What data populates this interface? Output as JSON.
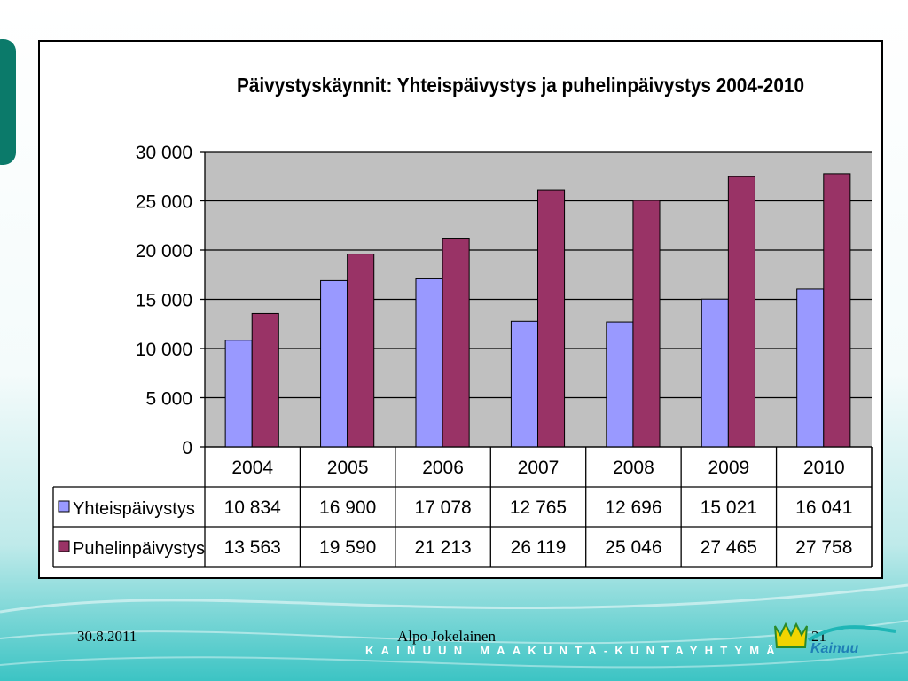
{
  "footer": {
    "date": "30.8.2011",
    "author": "Alpo Jokelainen",
    "page_number": "21",
    "organization_band": "KAINUUN MAAKUNTA-KUNTAYHTYMÄ",
    "logo_text": "Kainuu"
  },
  "colors": {
    "series_1": "#9999ff",
    "series_2": "#993366",
    "plot_background": "#c0c0c0",
    "accent_teal": "#1fb6b6",
    "dark_green_tab": "#0b7a6a"
  },
  "chart_data": {
    "type": "bar",
    "title": "Päivystyskäynnit: Yhteispäivystys ja puhelinpäivystys 2004-2010",
    "categories": [
      "2004",
      "2005",
      "2006",
      "2007",
      "2008",
      "2009",
      "2010"
    ],
    "series": [
      {
        "name": "Yhteispäivystys",
        "values": [
          10834,
          16900,
          17078,
          12765,
          12696,
          15021,
          16041
        ],
        "labels": [
          "10 834",
          "16 900",
          "17 078",
          "12 765",
          "12 696",
          "15 021",
          "16 041"
        ]
      },
      {
        "name": "Puhelinpäivystys",
        "values": [
          13563,
          19590,
          21213,
          26119,
          25046,
          27465,
          27758
        ],
        "labels": [
          "13 563",
          "19 590",
          "21 213",
          "26 119",
          "25 046",
          "27 465",
          "27 758"
        ]
      }
    ],
    "yticks": [
      0,
      5000,
      10000,
      15000,
      20000,
      25000,
      30000
    ],
    "ytick_labels": [
      "0",
      "5 000",
      "10 000",
      "15 000",
      "20 000",
      "25 000",
      "30 000"
    ],
    "ylim": [
      0,
      30000
    ],
    "grid": true,
    "legend": "data-table"
  }
}
